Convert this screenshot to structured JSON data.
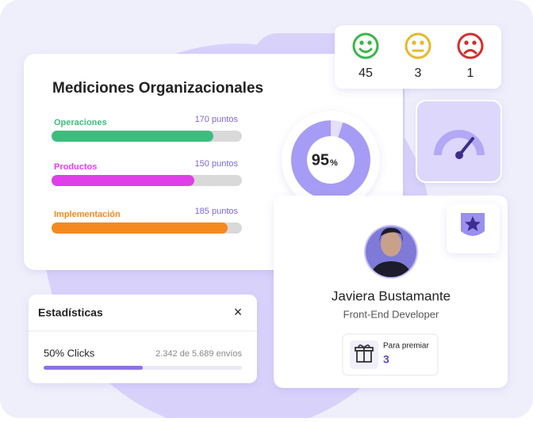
{
  "title": "Mediciones Organizacionales",
  "measures": {
    "xlim": [
      0,
      200
    ],
    "items": [
      {
        "label": "Operaciones",
        "value": 170,
        "value_label": "170 puntos",
        "color": "#3dbd7d"
      },
      {
        "label": "Productos",
        "value": 150,
        "value_label": "150 puntos",
        "color": "#e03ee8"
      },
      {
        "label": "Implementación",
        "value": 185,
        "value_label": "185 puntos",
        "color": "#f5891f"
      }
    ]
  },
  "donut": {
    "value": 95,
    "unit": "%",
    "ylim": [
      0,
      100
    ]
  },
  "feedback": [
    {
      "count": "45",
      "color": "#3cb54a"
    },
    {
      "count": "3",
      "color": "#e8b828"
    },
    {
      "count": "1",
      "color": "#d0302c"
    }
  ],
  "profile": {
    "name": "Javiera Bustamante",
    "role": "Front-End Developer",
    "reward_label": "Para premiar",
    "reward_count": "3"
  },
  "stats": {
    "title": "Estadísticas",
    "close": "×",
    "progress": {
      "value": 50,
      "label": "50% Clicks",
      "xlim": [
        0,
        100
      ]
    },
    "detail": "2.342 de 5.689 envíos"
  }
}
